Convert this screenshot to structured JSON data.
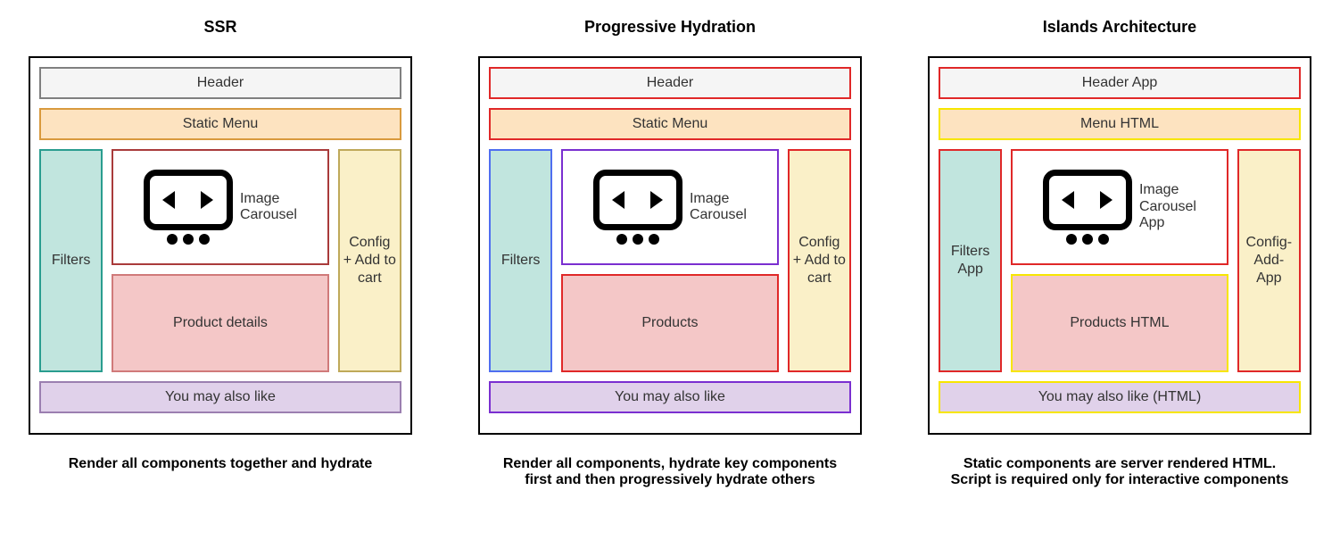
{
  "colors": {
    "frame_border": "#000000",
    "header_fill": "#f5f5f5",
    "menu_fill": "#fde3c0",
    "filters_fill": "#c1e5de",
    "carousel_fill": "#ffffff",
    "products_fill": "#f4c7c7",
    "config_fill": "#faf0c8",
    "footer_fill": "#e0d1ea",
    "border_gray": "#808080",
    "border_orange": "#d99a3d",
    "border_teal": "#2a9d8f",
    "border_darkred": "#a93b3b",
    "border_pink": "#d07a7a",
    "border_khaki": "#bfa95a",
    "border_purple_soft": "#9b7fb0",
    "border_red": "#e02828",
    "border_blue": "#4f6ef0",
    "border_purple": "#7a2fd0",
    "border_yellow": "#f7e600"
  },
  "carousel_label": "Image\nCarousel",
  "carousel_label_app": "Image\nCarousel\nApp",
  "panels": [
    {
      "title": "SSR",
      "caption": "Render all components together and hydrate",
      "cells": {
        "header": {
          "label": "Header",
          "fill": "header_fill",
          "border": "border_gray"
        },
        "menu": {
          "label": "Static Menu",
          "fill": "menu_fill",
          "border": "border_orange"
        },
        "filters": {
          "label": "Filters",
          "fill": "filters_fill",
          "border": "border_teal"
        },
        "carousel": {
          "label_key": "carousel_label",
          "fill": "carousel_fill",
          "border": "border_darkred"
        },
        "products": {
          "label": "Product details",
          "fill": "products_fill",
          "border": "border_pink"
        },
        "config": {
          "label": "Config + Add to cart",
          "fill": "config_fill",
          "border": "border_khaki"
        },
        "footer": {
          "label": "You may also like",
          "fill": "footer_fill",
          "border": "border_purple_soft"
        }
      }
    },
    {
      "title": "Progressive Hydration",
      "caption": "Render all components, hydrate key components first and then progressively hydrate others",
      "cells": {
        "header": {
          "label": "Header",
          "fill": "header_fill",
          "border": "border_red"
        },
        "menu": {
          "label": "Static Menu",
          "fill": "menu_fill",
          "border": "border_red"
        },
        "filters": {
          "label": "Filters",
          "fill": "filters_fill",
          "border": "border_blue"
        },
        "carousel": {
          "label_key": "carousel_label",
          "fill": "carousel_fill",
          "border": "border_purple"
        },
        "products": {
          "label": "Products",
          "fill": "products_fill",
          "border": "border_red"
        },
        "config": {
          "label": "Config + Add to cart",
          "fill": "config_fill",
          "border": "border_red"
        },
        "footer": {
          "label": "You may also like",
          "fill": "footer_fill",
          "border": "border_purple"
        }
      }
    },
    {
      "title": "Islands Architecture",
      "caption": "Static components are server rendered HTML. Script is required only for interactive components",
      "cells": {
        "header": {
          "label": "Header App",
          "fill": "header_fill",
          "border": "border_red"
        },
        "menu": {
          "label": "Menu HTML",
          "fill": "menu_fill",
          "border": "border_yellow"
        },
        "filters": {
          "label": "Filters App",
          "fill": "filters_fill",
          "border": "border_red"
        },
        "carousel": {
          "label_key": "carousel_label_app",
          "fill": "carousel_fill",
          "border": "border_red"
        },
        "products": {
          "label": "Products HTML",
          "fill": "products_fill",
          "border": "border_yellow"
        },
        "config": {
          "label": "Config-Add-App",
          "fill": "config_fill",
          "border": "border_red"
        },
        "footer": {
          "label": "You may also like (HTML)",
          "fill": "footer_fill",
          "border": "border_yellow"
        }
      }
    }
  ]
}
